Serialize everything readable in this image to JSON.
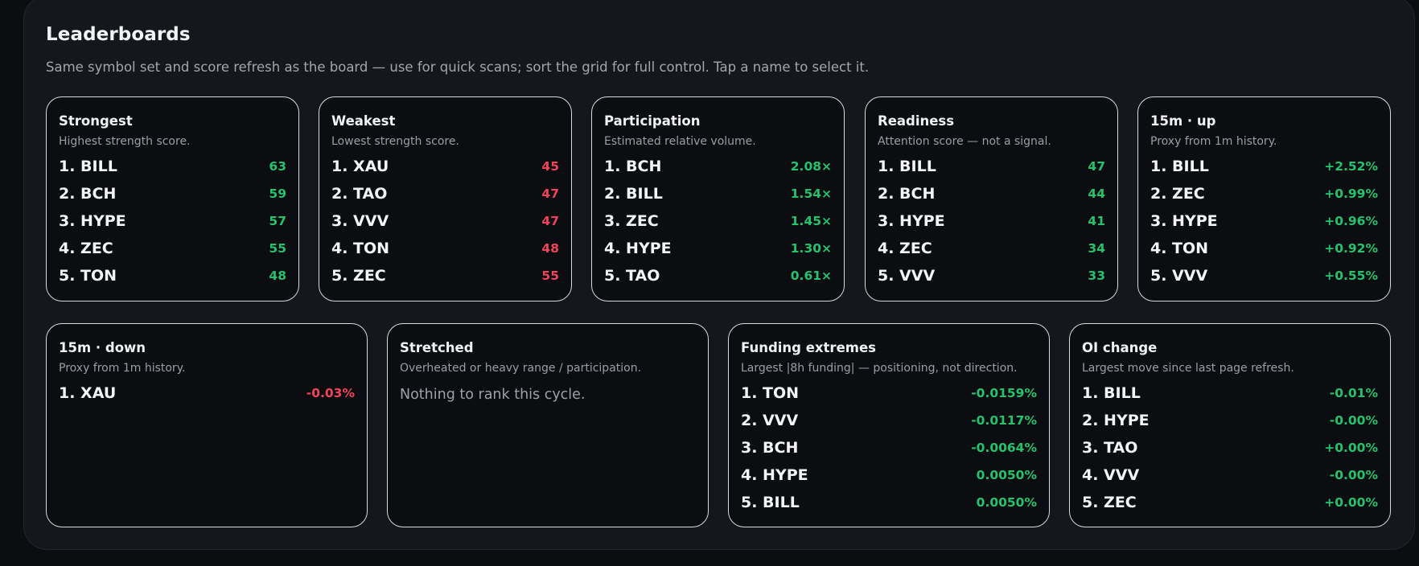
{
  "leaderboards": {
    "title": "Leaderboards",
    "subtitle": "Same symbol set and score refresh as the board — use for quick scans; sort the grid for full control. Tap a name to select it."
  },
  "colors": {
    "positive": "#25c26e",
    "negative": "#f0445a",
    "panel_bg": "#15171c",
    "card_bg": "#0c0d10",
    "card_border": "#d9dbe0"
  },
  "cards": [
    {
      "title": "Strongest",
      "desc": "Highest strength score.",
      "rows": [
        {
          "name": "1. BILL",
          "value": "63",
          "tone": "pos"
        },
        {
          "name": "2. BCH",
          "value": "59",
          "tone": "pos"
        },
        {
          "name": "3. HYPE",
          "value": "57",
          "tone": "pos"
        },
        {
          "name": "4. ZEC",
          "value": "55",
          "tone": "pos"
        },
        {
          "name": "5. TON",
          "value": "48",
          "tone": "pos"
        }
      ]
    },
    {
      "title": "Weakest",
      "desc": "Lowest strength score.",
      "rows": [
        {
          "name": "1. XAU",
          "value": "45",
          "tone": "neg"
        },
        {
          "name": "2. TAO",
          "value": "47",
          "tone": "neg"
        },
        {
          "name": "3. VVV",
          "value": "47",
          "tone": "neg"
        },
        {
          "name": "4. TON",
          "value": "48",
          "tone": "neg"
        },
        {
          "name": "5. ZEC",
          "value": "55",
          "tone": "neg"
        }
      ]
    },
    {
      "title": "Participation",
      "desc": "Estimated relative volume.",
      "rows": [
        {
          "name": "1. BCH",
          "value": "2.08×",
          "tone": "pos"
        },
        {
          "name": "2. BILL",
          "value": "1.54×",
          "tone": "pos"
        },
        {
          "name": "3. ZEC",
          "value": "1.45×",
          "tone": "pos"
        },
        {
          "name": "4. HYPE",
          "value": "1.30×",
          "tone": "pos"
        },
        {
          "name": "5. TAO",
          "value": "0.61×",
          "tone": "pos"
        }
      ]
    },
    {
      "title": "Readiness",
      "desc": "Attention score — not a signal.",
      "rows": [
        {
          "name": "1. BILL",
          "value": "47",
          "tone": "pos"
        },
        {
          "name": "2. BCH",
          "value": "44",
          "tone": "pos"
        },
        {
          "name": "3. HYPE",
          "value": "41",
          "tone": "pos"
        },
        {
          "name": "4. ZEC",
          "value": "34",
          "tone": "pos"
        },
        {
          "name": "5. VVV",
          "value": "33",
          "tone": "pos"
        }
      ]
    },
    {
      "title": "15m · up",
      "desc": "Proxy from 1m history.",
      "rows": [
        {
          "name": "1. BILL",
          "value": "+2.52%",
          "tone": "pos"
        },
        {
          "name": "2. ZEC",
          "value": "+0.99%",
          "tone": "pos"
        },
        {
          "name": "3. HYPE",
          "value": "+0.96%",
          "tone": "pos"
        },
        {
          "name": "4. TON",
          "value": "+0.92%",
          "tone": "pos"
        },
        {
          "name": "5. VVV",
          "value": "+0.55%",
          "tone": "pos"
        }
      ]
    },
    {
      "title": "15m · down",
      "desc": "Proxy from 1m history.",
      "rows": [
        {
          "name": "1. XAU",
          "value": "-0.03%",
          "tone": "neg"
        }
      ]
    },
    {
      "title": "Stretched",
      "desc": "Overheated or heavy range / participation.",
      "empty": "Nothing to rank this cycle.",
      "rows": []
    },
    {
      "title": "Funding extremes",
      "desc": "Largest |8h funding| — positioning, not direction.",
      "rows": [
        {
          "name": "1. TON",
          "value": "-0.0159%",
          "tone": "pos"
        },
        {
          "name": "2. VVV",
          "value": "-0.0117%",
          "tone": "pos"
        },
        {
          "name": "3. BCH",
          "value": "-0.0064%",
          "tone": "pos"
        },
        {
          "name": "4. HYPE",
          "value": "0.0050%",
          "tone": "pos"
        },
        {
          "name": "5. BILL",
          "value": "0.0050%",
          "tone": "pos"
        }
      ]
    },
    {
      "title": "OI change",
      "desc": "Largest move since last page refresh.",
      "rows": [
        {
          "name": "1. BILL",
          "value": "-0.01%",
          "tone": "pos"
        },
        {
          "name": "2. HYPE",
          "value": "-0.00%",
          "tone": "pos"
        },
        {
          "name": "3. TAO",
          "value": "+0.00%",
          "tone": "pos"
        },
        {
          "name": "4. VVV",
          "value": "-0.00%",
          "tone": "pos"
        },
        {
          "name": "5. ZEC",
          "value": "+0.00%",
          "tone": "pos"
        }
      ]
    }
  ]
}
